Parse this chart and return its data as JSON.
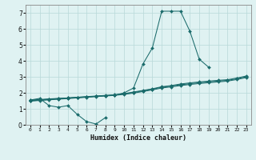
{
  "xlabel": "Humidex (Indice chaleur)",
  "bg_color": "#dff2f2",
  "grid_color": "#b8d8d8",
  "line_color": "#1a6b6b",
  "xlim": [
    -0.5,
    23.5
  ],
  "ylim": [
    0,
    7.5
  ],
  "xticks": [
    0,
    1,
    2,
    3,
    4,
    5,
    6,
    7,
    8,
    9,
    10,
    11,
    12,
    13,
    14,
    15,
    16,
    17,
    18,
    19,
    20,
    21,
    22,
    23
  ],
  "yticks": [
    0,
    1,
    2,
    3,
    4,
    5,
    6,
    7
  ],
  "series": [
    {
      "x": [
        0,
        1,
        2,
        3,
        4,
        5,
        6,
        7,
        8
      ],
      "y": [
        1.55,
        1.65,
        1.2,
        1.1,
        1.2,
        0.65,
        0.2,
        0.05,
        0.45
      ]
    },
    {
      "x": [
        0,
        1,
        2,
        3,
        4,
        5,
        6,
        7,
        8,
        9,
        10,
        11,
        12,
        13,
        14,
        15,
        16,
        17,
        18,
        19
      ],
      "y": [
        1.55,
        1.58,
        1.62,
        1.65,
        1.68,
        1.72,
        1.75,
        1.78,
        1.82,
        1.85,
        2.0,
        2.3,
        3.8,
        4.8,
        7.1,
        7.1,
        7.1,
        5.85,
        4.1,
        3.6
      ]
    },
    {
      "x": [
        0,
        1,
        2,
        3,
        4,
        5,
        6,
        7,
        8,
        9,
        10,
        11,
        12,
        13,
        14,
        15,
        16,
        17,
        18,
        19,
        20,
        21,
        22,
        23
      ],
      "y": [
        1.52,
        1.56,
        1.6,
        1.64,
        1.68,
        1.72,
        1.76,
        1.8,
        1.84,
        1.88,
        1.95,
        2.05,
        2.15,
        2.25,
        2.38,
        2.45,
        2.55,
        2.62,
        2.68,
        2.73,
        2.78,
        2.82,
        2.92,
        3.05
      ]
    },
    {
      "x": [
        0,
        1,
        2,
        3,
        4,
        5,
        6,
        7,
        8,
        9,
        10,
        11,
        12,
        13,
        14,
        15,
        16,
        17,
        18,
        19,
        20,
        21,
        22,
        23
      ],
      "y": [
        1.5,
        1.54,
        1.58,
        1.62,
        1.66,
        1.7,
        1.74,
        1.78,
        1.82,
        1.86,
        1.93,
        2.02,
        2.12,
        2.22,
        2.35,
        2.42,
        2.5,
        2.57,
        2.63,
        2.68,
        2.73,
        2.78,
        2.88,
        3.0
      ]
    },
    {
      "x": [
        0,
        1,
        2,
        3,
        4,
        5,
        6,
        7,
        8,
        9,
        10,
        11,
        12,
        13,
        14,
        15,
        16,
        17,
        18,
        19,
        20,
        21,
        22,
        23
      ],
      "y": [
        1.48,
        1.52,
        1.56,
        1.6,
        1.64,
        1.68,
        1.72,
        1.76,
        1.8,
        1.84,
        1.9,
        1.98,
        2.08,
        2.18,
        2.3,
        2.37,
        2.45,
        2.52,
        2.58,
        2.63,
        2.68,
        2.73,
        2.83,
        2.95
      ]
    }
  ]
}
